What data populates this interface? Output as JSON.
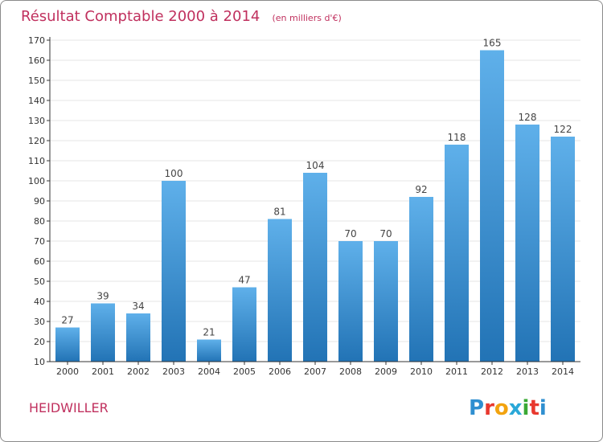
{
  "chart_data": {
    "type": "bar",
    "title": "Résultat Comptable 2000 à 2014",
    "subtitle": "(en milliers d'€)",
    "categories": [
      "2000",
      "2001",
      "2002",
      "2003",
      "2004",
      "2005",
      "2006",
      "2007",
      "2008",
      "2009",
      "2010",
      "2011",
      "2012",
      "2013",
      "2014"
    ],
    "values": [
      27,
      39,
      34,
      100,
      21,
      47,
      81,
      104,
      70,
      70,
      92,
      118,
      165,
      128,
      122
    ],
    "ylim": [
      10,
      170
    ],
    "yticks": [
      10,
      20,
      30,
      40,
      50,
      60,
      70,
      80,
      90,
      100,
      110,
      120,
      130,
      140,
      150,
      160,
      170
    ],
    "grid": true,
    "xlabel": "",
    "ylabel": ""
  },
  "footer": {
    "city": "HEIDWILLER",
    "logo_text": "Proxiti",
    "logo_colors": [
      "#2f8fd0",
      "#e8382e",
      "#f2a30f",
      "#2aa8d8",
      "#3aa935",
      "#e8382e",
      "#2f8fd0"
    ]
  },
  "colors": {
    "title": "#c0305e",
    "bar_top": "#5fb0ea",
    "bar_bottom": "#2273b5",
    "grid": "#e6e6e6",
    "axis": "#333333"
  }
}
